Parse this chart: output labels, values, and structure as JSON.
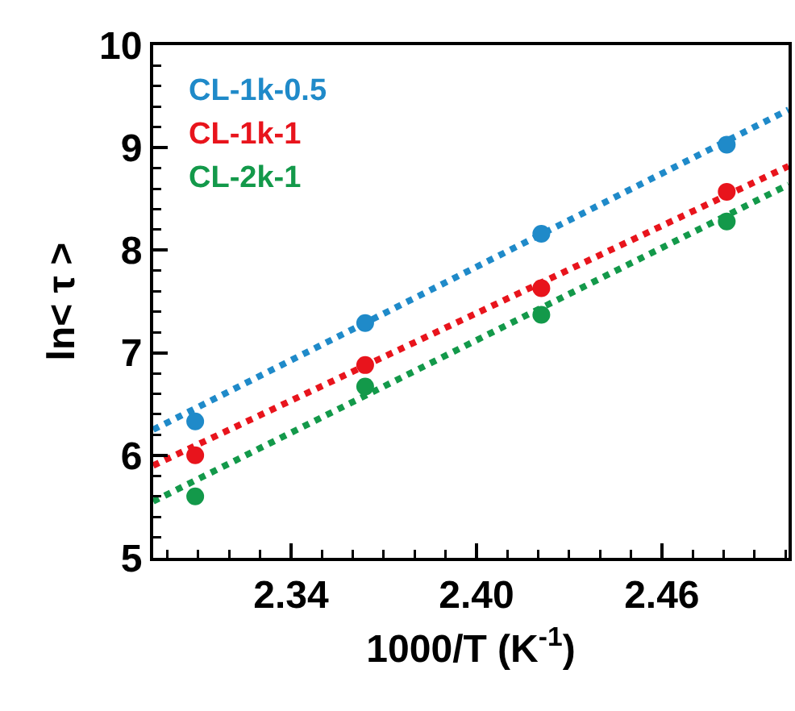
{
  "chart_data": {
    "type": "scatter",
    "xlabel": "1000/T (K$^{-1}$)",
    "ylabel": "ln< τ >",
    "xlim": [
      2.2954,
      2.501
    ],
    "xticks": [
      {
        "value": 2.34,
        "label": "2.34"
      },
      {
        "value": 2.4,
        "label": "2.40"
      },
      {
        "value": 2.46,
        "label": "2.46"
      }
    ],
    "ylim": [
      5,
      10
    ],
    "yticks": [
      5,
      6,
      7,
      8,
      9,
      10
    ],
    "grid": false,
    "legend": "top left",
    "series": [
      {
        "name": "CL-1k-0.5",
        "color": "#1f8ac9",
        "marker": "circle",
        "x": [
          2.309,
          2.364,
          2.421,
          2.481
        ],
        "values": [
          6.33,
          7.29,
          8.16,
          9.03
        ]
      },
      {
        "name": "CL-1k-1",
        "color": "#e8141c",
        "marker": "circle",
        "x": [
          2.309,
          2.364,
          2.421,
          2.481
        ],
        "values": [
          6.0,
          6.88,
          7.63,
          8.57
        ]
      },
      {
        "name": "CL-2k-1",
        "color": "#13994a",
        "marker": "circle",
        "x": [
          2.309,
          2.364,
          2.421,
          2.481
        ],
        "values": [
          5.6,
          6.67,
          7.37,
          8.28
        ]
      },
      {
        "type": "line",
        "line_style": "dotted",
        "marker": "none",
        "color": "#1f8ac9",
        "x": [
          2.2954,
          2.501
        ],
        "values": [
          6.25,
          9.37
        ]
      },
      {
        "type": "line",
        "line_style": "dotted",
        "marker": "none",
        "color": "#e8141c",
        "x": [
          2.2954,
          2.501
        ],
        "values": [
          5.9,
          8.82
        ]
      },
      {
        "type": "line",
        "line_style": "dotted",
        "marker": "none",
        "color": "#13994a",
        "x": [
          2.2954,
          2.501
        ],
        "values": [
          5.55,
          8.64
        ]
      }
    ]
  }
}
